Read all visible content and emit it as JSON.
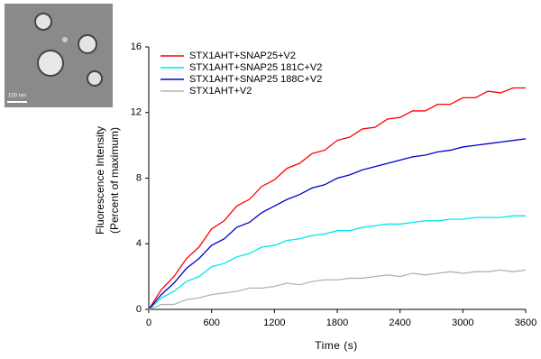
{
  "chart_data": {
    "type": "line",
    "ylabel": [
      "Fluorescence Intensity",
      "(Percent of maximum)"
    ],
    "xlabel": "Time (s)",
    "x": [
      0,
      120,
      240,
      360,
      480,
      600,
      720,
      840,
      960,
      1080,
      1200,
      1320,
      1440,
      1560,
      1680,
      1800,
      1920,
      2040,
      2160,
      2280,
      2400,
      2520,
      2640,
      2760,
      2880,
      3000,
      3120,
      3240,
      3360,
      3480,
      3600
    ],
    "series": [
      {
        "name": "STX1AHT+SNAP25+V2",
        "color": "#ff0000",
        "values": [
          0,
          1.2,
          2.0,
          3.1,
          3.8,
          4.9,
          5.4,
          6.3,
          6.7,
          7.5,
          7.9,
          8.6,
          8.9,
          9.5,
          9.7,
          10.3,
          10.5,
          11.0,
          11.1,
          11.6,
          11.7,
          12.1,
          12.1,
          12.5,
          12.5,
          12.9,
          12.9,
          13.3,
          13.2,
          13.5,
          13.5
        ]
      },
      {
        "name": "STX1AHT+SNAP25 181C+V2",
        "color": "#00e5ee",
        "values": [
          0,
          0.7,
          1.1,
          1.7,
          2.0,
          2.6,
          2.8,
          3.2,
          3.4,
          3.8,
          3.9,
          4.2,
          4.3,
          4.5,
          4.6,
          4.8,
          4.8,
          5.0,
          5.1,
          5.2,
          5.2,
          5.3,
          5.4,
          5.4,
          5.5,
          5.5,
          5.6,
          5.6,
          5.6,
          5.7,
          5.7
        ]
      },
      {
        "name": "STX1AHT+SNAP25 188C+V2",
        "color": "#0000cc",
        "values": [
          0,
          0.9,
          1.6,
          2.5,
          3.1,
          3.9,
          4.3,
          5.0,
          5.3,
          5.9,
          6.3,
          6.7,
          7.0,
          7.4,
          7.6,
          8.0,
          8.2,
          8.5,
          8.7,
          8.9,
          9.1,
          9.3,
          9.4,
          9.6,
          9.7,
          9.9,
          10.0,
          10.1,
          10.2,
          10.3,
          10.4
        ]
      },
      {
        "name": "STX1AHT+V2",
        "color": "#b3b3b3",
        "values": [
          0,
          0.3,
          0.3,
          0.6,
          0.7,
          0.9,
          1.0,
          1.1,
          1.3,
          1.3,
          1.4,
          1.6,
          1.5,
          1.7,
          1.8,
          1.8,
          1.9,
          1.9,
          2.0,
          2.1,
          2.0,
          2.2,
          2.1,
          2.2,
          2.3,
          2.2,
          2.3,
          2.3,
          2.4,
          2.3,
          2.4
        ]
      }
    ],
    "xlim": [
      0,
      3600
    ],
    "xticks": [
      0,
      600,
      1200,
      1800,
      2400,
      3000,
      3600
    ],
    "ylim": [
      0,
      16
    ],
    "yticks": [
      0,
      4,
      8,
      12,
      16
    ],
    "legend": "upper left"
  },
  "inset": {
    "scale_label": "100 nm"
  }
}
